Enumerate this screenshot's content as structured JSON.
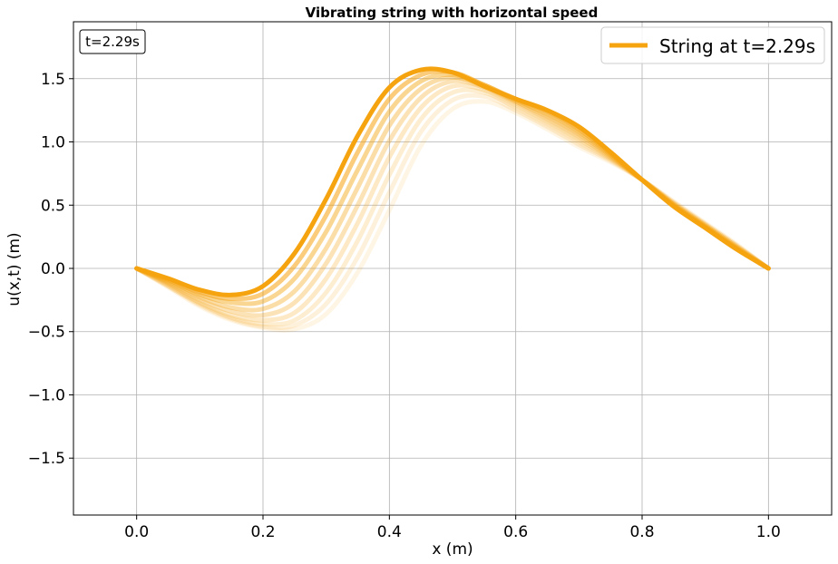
{
  "chart_data": {
    "type": "line",
    "title": "Vibrating string with horizontal speed",
    "xlabel": "x (m)",
    "ylabel": "u(x,t) (m)",
    "xlim": [
      -0.1,
      1.1
    ],
    "ylim": [
      -1.95,
      1.95
    ],
    "xticks": [
      0.0,
      0.2,
      0.4,
      0.6,
      0.8,
      1.0
    ],
    "xtick_labels": [
      "0.0",
      "0.2",
      "0.4",
      "0.6",
      "0.8",
      "1.0"
    ],
    "yticks": [
      -1.5,
      -1.0,
      -0.5,
      0.0,
      0.5,
      1.0,
      1.5
    ],
    "ytick_labels": [
      "−1.5",
      "−1.0",
      "−0.5",
      "0.0",
      "0.5",
      "1.0",
      "1.5"
    ],
    "grid": true,
    "legend_position": "top-right",
    "time_annotation": "t=2.29s",
    "color": "#f5a30f",
    "series": [
      {
        "name": "String at t=2.29s",
        "x": [
          0.0,
          0.05,
          0.1,
          0.15,
          0.2,
          0.25,
          0.3,
          0.35,
          0.4,
          0.45,
          0.5,
          0.55,
          0.6,
          0.65,
          0.7,
          0.75,
          0.8,
          0.85,
          0.9,
          0.95,
          1.0
        ],
        "y": [
          0.0,
          -0.08,
          -0.17,
          -0.21,
          -0.14,
          0.12,
          0.55,
          1.05,
          1.43,
          1.57,
          1.55,
          1.44,
          1.34,
          1.25,
          1.12,
          0.92,
          0.7,
          0.49,
          0.32,
          0.15,
          0.0
        ]
      }
    ],
    "trails": [
      {
        "opacity": 0.55,
        "x": [
          0.0,
          0.05,
          0.1,
          0.15,
          0.2,
          0.25,
          0.3,
          0.35,
          0.4,
          0.45,
          0.5,
          0.55,
          0.6,
          0.65,
          0.7,
          0.75,
          0.8,
          0.85,
          0.9,
          0.95,
          1.0
        ],
        "y": [
          0.0,
          -0.09,
          -0.19,
          -0.24,
          -0.2,
          0.02,
          0.42,
          0.92,
          1.34,
          1.53,
          1.55,
          1.45,
          1.34,
          1.24,
          1.1,
          0.91,
          0.7,
          0.49,
          0.32,
          0.15,
          0.0
        ]
      },
      {
        "opacity": 0.45,
        "x": [
          0.0,
          0.05,
          0.1,
          0.15,
          0.2,
          0.25,
          0.3,
          0.35,
          0.4,
          0.45,
          0.5,
          0.55,
          0.6,
          0.65,
          0.7,
          0.75,
          0.8,
          0.85,
          0.9,
          0.95,
          1.0
        ],
        "y": [
          0.0,
          -0.1,
          -0.21,
          -0.27,
          -0.26,
          -0.08,
          0.29,
          0.78,
          1.24,
          1.48,
          1.53,
          1.45,
          1.33,
          1.22,
          1.08,
          0.9,
          0.7,
          0.5,
          0.33,
          0.16,
          0.0
        ]
      },
      {
        "opacity": 0.37,
        "x": [
          0.0,
          0.05,
          0.1,
          0.15,
          0.2,
          0.25,
          0.3,
          0.35,
          0.4,
          0.45,
          0.5,
          0.55,
          0.6,
          0.65,
          0.7,
          0.75,
          0.8,
          0.85,
          0.9,
          0.95,
          1.0
        ],
        "y": [
          0.0,
          -0.11,
          -0.23,
          -0.31,
          -0.32,
          -0.18,
          0.16,
          0.64,
          1.13,
          1.42,
          1.51,
          1.44,
          1.32,
          1.2,
          1.06,
          0.89,
          0.7,
          0.5,
          0.33,
          0.16,
          0.0
        ]
      },
      {
        "opacity": 0.3,
        "x": [
          0.0,
          0.05,
          0.1,
          0.15,
          0.2,
          0.25,
          0.3,
          0.35,
          0.4,
          0.45,
          0.5,
          0.55,
          0.6,
          0.65,
          0.7,
          0.75,
          0.8,
          0.85,
          0.9,
          0.95,
          1.0
        ],
        "y": [
          0.0,
          -0.12,
          -0.25,
          -0.34,
          -0.37,
          -0.27,
          0.04,
          0.5,
          1.01,
          1.35,
          1.48,
          1.43,
          1.31,
          1.18,
          1.04,
          0.88,
          0.7,
          0.51,
          0.34,
          0.17,
          0.0
        ]
      },
      {
        "opacity": 0.24,
        "x": [
          0.0,
          0.05,
          0.1,
          0.15,
          0.2,
          0.25,
          0.3,
          0.35,
          0.4,
          0.45,
          0.5,
          0.55,
          0.6,
          0.65,
          0.7,
          0.75,
          0.8,
          0.85,
          0.9,
          0.95,
          1.0
        ],
        "y": [
          0.0,
          -0.13,
          -0.27,
          -0.37,
          -0.41,
          -0.35,
          -0.08,
          0.36,
          0.88,
          1.27,
          1.44,
          1.41,
          1.29,
          1.16,
          1.02,
          0.87,
          0.7,
          0.51,
          0.34,
          0.17,
          0.0
        ]
      },
      {
        "opacity": 0.19,
        "x": [
          0.0,
          0.05,
          0.1,
          0.15,
          0.2,
          0.25,
          0.3,
          0.35,
          0.4,
          0.45,
          0.5,
          0.55,
          0.6,
          0.65,
          0.7,
          0.75,
          0.8,
          0.85,
          0.9,
          0.95,
          1.0
        ],
        "y": [
          0.0,
          -0.14,
          -0.28,
          -0.39,
          -0.44,
          -0.41,
          -0.19,
          0.22,
          0.74,
          1.18,
          1.39,
          1.39,
          1.27,
          1.14,
          1.0,
          0.86,
          0.7,
          0.52,
          0.35,
          0.18,
          0.0
        ]
      },
      {
        "opacity": 0.15,
        "x": [
          0.0,
          0.05,
          0.1,
          0.15,
          0.2,
          0.25,
          0.3,
          0.35,
          0.4,
          0.45,
          0.5,
          0.55,
          0.6,
          0.65,
          0.7,
          0.75,
          0.8,
          0.85,
          0.9,
          0.95,
          1.0
        ],
        "y": [
          0.0,
          -0.14,
          -0.29,
          -0.4,
          -0.46,
          -0.45,
          -0.28,
          0.09,
          0.6,
          1.08,
          1.33,
          1.36,
          1.25,
          1.12,
          0.98,
          0.85,
          0.7,
          0.52,
          0.35,
          0.18,
          0.0
        ]
      },
      {
        "opacity": 0.11,
        "x": [
          0.0,
          0.05,
          0.1,
          0.15,
          0.2,
          0.25,
          0.3,
          0.35,
          0.4,
          0.45,
          0.5,
          0.55,
          0.6,
          0.65,
          0.7,
          0.75,
          0.8,
          0.85,
          0.9,
          0.95,
          1.0
        ],
        "y": [
          0.0,
          -0.15,
          -0.3,
          -0.41,
          -0.47,
          -0.48,
          -0.36,
          -0.03,
          0.46,
          0.97,
          1.26,
          1.32,
          1.23,
          1.1,
          0.96,
          0.84,
          0.7,
          0.53,
          0.36,
          0.19,
          0.0
        ]
      }
    ]
  }
}
